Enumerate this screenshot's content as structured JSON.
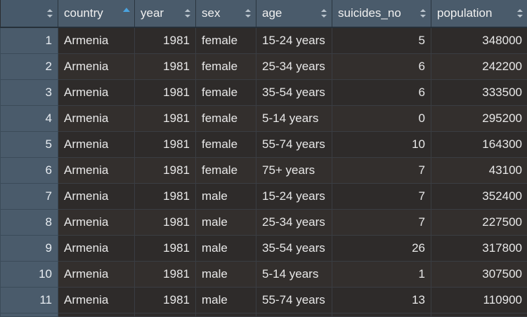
{
  "table": {
    "columns": [
      {
        "key": "country",
        "label": "country",
        "sort": "ascending"
      },
      {
        "key": "year",
        "label": "year",
        "sort": "none"
      },
      {
        "key": "sex",
        "label": "sex",
        "sort": "none"
      },
      {
        "key": "age",
        "label": "age",
        "sort": "none"
      },
      {
        "key": "suicides_no",
        "label": "suicides_no",
        "sort": "none"
      },
      {
        "key": "population",
        "label": "population",
        "sort": "none"
      }
    ],
    "rows": [
      {
        "index": "1",
        "country": "Armenia",
        "year": "1981",
        "sex": "female",
        "age": "15-24 years",
        "suicides_no": "5",
        "population": "348000"
      },
      {
        "index": "2",
        "country": "Armenia",
        "year": "1981",
        "sex": "female",
        "age": "25-34 years",
        "suicides_no": "6",
        "population": "242200"
      },
      {
        "index": "3",
        "country": "Armenia",
        "year": "1981",
        "sex": "female",
        "age": "35-54 years",
        "suicides_no": "6",
        "population": "333500"
      },
      {
        "index": "4",
        "country": "Armenia",
        "year": "1981",
        "sex": "female",
        "age": "5-14 years",
        "suicides_no": "0",
        "population": "295200"
      },
      {
        "index": "5",
        "country": "Armenia",
        "year": "1981",
        "sex": "female",
        "age": "55-74 years",
        "suicides_no": "10",
        "population": "164300"
      },
      {
        "index": "6",
        "country": "Armenia",
        "year": "1981",
        "sex": "female",
        "age": "75+ years",
        "suicides_no": "7",
        "population": "43100"
      },
      {
        "index": "7",
        "country": "Armenia",
        "year": "1981",
        "sex": "male",
        "age": "15-24 years",
        "suicides_no": "7",
        "population": "352400"
      },
      {
        "index": "8",
        "country": "Armenia",
        "year": "1981",
        "sex": "male",
        "age": "25-34 years",
        "suicides_no": "7",
        "population": "227500"
      },
      {
        "index": "9",
        "country": "Armenia",
        "year": "1981",
        "sex": "male",
        "age": "35-54 years",
        "suicides_no": "26",
        "population": "317800"
      },
      {
        "index": "10",
        "country": "Armenia",
        "year": "1981",
        "sex": "male",
        "age": "5-14 years",
        "suicides_no": "1",
        "population": "307500"
      },
      {
        "index": "11",
        "country": "Armenia",
        "year": "1981",
        "sex": "male",
        "age": "55-74 years",
        "suicides_no": "13",
        "population": "110900"
      }
    ]
  },
  "colors": {
    "header_bg": "#4a5b6b",
    "cell_bg": "#2e2b2a",
    "sort_active": "#4aa3df",
    "sort_inactive": "#b9c3cc"
  },
  "icons": {
    "sort_active": "sort-ascending-icon",
    "sort_inactive": "sort-both-icon"
  }
}
